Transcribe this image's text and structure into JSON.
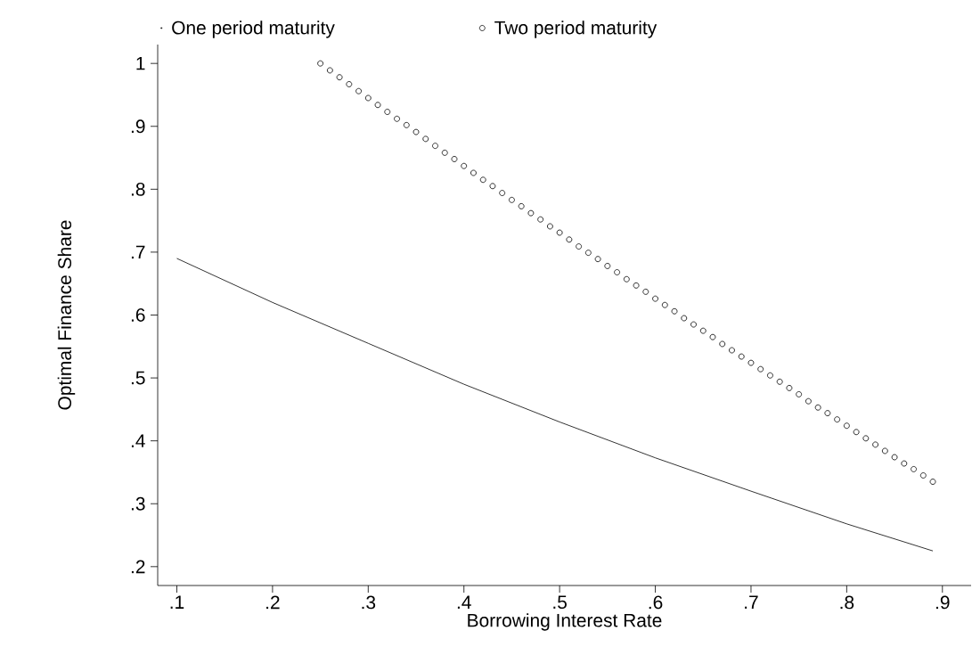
{
  "chart_data": {
    "type": "line",
    "xlabel": "Borrowing Interest Rate",
    "ylabel": "Optimal Finance Share",
    "xlim": [
      0.08,
      0.93
    ],
    "ylim": [
      0.17,
      1.03
    ],
    "xticks": [
      {
        "value": 0.1,
        "label": ".1"
      },
      {
        "value": 0.2,
        "label": ".2"
      },
      {
        "value": 0.3,
        "label": ".3"
      },
      {
        "value": 0.4,
        "label": ".4"
      },
      {
        "value": 0.5,
        "label": ".5"
      },
      {
        "value": 0.6,
        "label": ".6"
      },
      {
        "value": 0.7,
        "label": ".7"
      },
      {
        "value": 0.8,
        "label": ".8"
      },
      {
        "value": 0.9,
        "label": ".9"
      }
    ],
    "yticks": [
      {
        "value": 0.2,
        "label": ".2"
      },
      {
        "value": 0.3,
        "label": ".3"
      },
      {
        "value": 0.4,
        "label": ".4"
      },
      {
        "value": 0.5,
        "label": ".5"
      },
      {
        "value": 0.6,
        "label": ".6"
      },
      {
        "value": 0.7,
        "label": ".7"
      },
      {
        "value": 0.8,
        "label": ".8"
      },
      {
        "value": 0.9,
        "label": ".9"
      },
      1
    ],
    "legend": "top",
    "grid": false,
    "series": [
      {
        "name": "One period maturity",
        "color": "#000000",
        "marker": "none",
        "line_style": "solid",
        "x": [
          0.1,
          0.2,
          0.3,
          0.4,
          0.5,
          0.6,
          0.7,
          0.8,
          0.89
        ],
        "values": [
          0.69,
          0.62,
          0.555,
          0.49,
          0.43,
          0.373,
          0.32,
          0.268,
          0.225
        ]
      },
      {
        "name": "Two period maturity",
        "type": "scatter",
        "color": "#000000",
        "marker": "circle",
        "x": [
          0.25,
          0.26,
          0.27,
          0.28,
          0.29,
          0.3,
          0.31,
          0.32,
          0.33,
          0.34,
          0.35,
          0.36,
          0.37,
          0.38,
          0.39,
          0.4,
          0.41,
          0.42,
          0.43,
          0.44,
          0.45,
          0.46,
          0.47,
          0.48,
          0.49,
          0.5,
          0.51,
          0.52,
          0.53,
          0.54,
          0.55,
          0.56,
          0.57,
          0.58,
          0.59,
          0.6,
          0.61,
          0.62,
          0.63,
          0.64,
          0.65,
          0.66,
          0.67,
          0.68,
          0.69,
          0.7,
          0.71,
          0.72,
          0.73,
          0.74,
          0.75,
          0.76,
          0.77,
          0.78,
          0.79,
          0.8,
          0.81,
          0.82,
          0.83,
          0.84,
          0.85,
          0.86,
          0.87,
          0.88,
          0.89
        ],
        "values": [
          1.0,
          0.989,
          0.978,
          0.967,
          0.956,
          0.945,
          0.934,
          0.923,
          0.912,
          0.902,
          0.891,
          0.88,
          0.869,
          0.858,
          0.848,
          0.837,
          0.826,
          0.815,
          0.805,
          0.794,
          0.783,
          0.773,
          0.762,
          0.752,
          0.741,
          0.731,
          0.72,
          0.709,
          0.699,
          0.689,
          0.678,
          0.668,
          0.657,
          0.647,
          0.637,
          0.626,
          0.616,
          0.606,
          0.595,
          0.585,
          0.575,
          0.565,
          0.554,
          0.544,
          0.534,
          0.524,
          0.514,
          0.504,
          0.494,
          0.484,
          0.474,
          0.463,
          0.453,
          0.444,
          0.434,
          0.424,
          0.414,
          0.404,
          0.394,
          0.384,
          0.374,
          0.364,
          0.355,
          0.345,
          0.335
        ]
      }
    ]
  }
}
